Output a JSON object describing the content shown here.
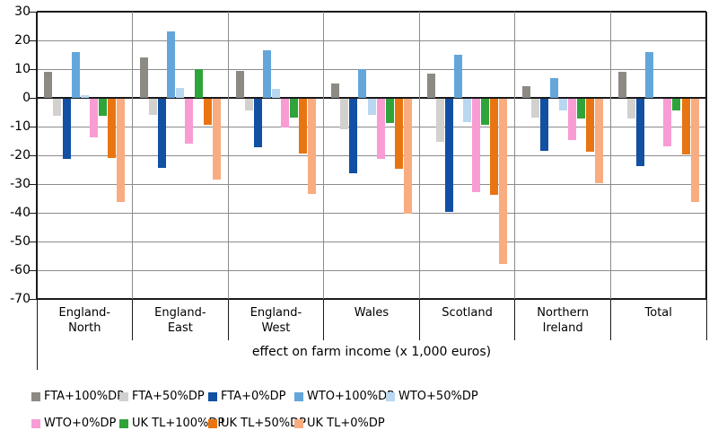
{
  "chart_data": {
    "type": "bar",
    "title": "",
    "xlabel": "effect on farm income (x 1,000 euros)",
    "ylabel": "",
    "ylim": [
      -70,
      30
    ],
    "yticks": [
      30,
      20,
      10,
      0,
      -10,
      -20,
      -30,
      -40,
      -50,
      -60,
      -70
    ],
    "grid": true,
    "legend_position": "bottom",
    "categories": [
      "England-North",
      "England-East",
      "England-West",
      "Wales",
      "Scotland",
      "Northern Ireland",
      "Total"
    ],
    "category_label_lines": [
      [
        "England-",
        "North"
      ],
      [
        "England-",
        "East"
      ],
      [
        "England-",
        "West"
      ],
      [
        "Wales"
      ],
      [
        "Scotland"
      ],
      [
        "Northern",
        "Ireland"
      ],
      [
        "Total"
      ]
    ],
    "series": [
      {
        "name": "FTA+100%DP",
        "color": "#8D8A84",
        "values": [
          9,
          14,
          9.5,
          5,
          8.5,
          4,
          9
        ]
      },
      {
        "name": "FTA+50%DP",
        "color": "#D2D1CF",
        "values": [
          -6,
          -5.5,
          -4,
          -10.5,
          -15,
          -6.5,
          -7
        ]
      },
      {
        "name": "FTA+0%DP",
        "color": "#1150A2",
        "values": [
          -21,
          -24,
          -17,
          -26,
          -39.5,
          -18,
          -23.5
        ]
      },
      {
        "name": "WTO+100%DP",
        "color": "#63A7DA",
        "values": [
          16,
          23,
          16.5,
          10,
          15,
          7,
          16
        ]
      },
      {
        "name": "WTO+50%DP",
        "color": "#B9D7F1",
        "values": [
          1,
          3.5,
          3,
          -5.5,
          -8,
          -4,
          0
        ]
      },
      {
        "name": "WTO+0%DP",
        "color": "#F99CD4",
        "values": [
          -13.5,
          -15.5,
          -10,
          -21,
          -32.5,
          -14.5,
          -16.5
        ]
      },
      {
        "name": "UK TL+100%DP",
        "color": "#2EA43A",
        "values": [
          -6,
          10,
          -6.5,
          -8.5,
          -9,
          -7,
          -4
        ]
      },
      {
        "name": "UK TL+50%DP",
        "color": "#E87512",
        "values": [
          -20.5,
          -9,
          -19,
          -24.5,
          -33.5,
          -18.5,
          -19.5
        ]
      },
      {
        "name": "UK TL+0%DP",
        "color": "#F9AC80",
        "values": [
          -36,
          -28,
          -33,
          -40,
          -57.5,
          -29.5,
          -36
        ]
      }
    ],
    "legend_rows": [
      [
        "FTA+100%DP",
        "FTA+50%DP",
        "FTA+0%DP",
        "WTO+100%DP",
        "WTO+50%DP"
      ],
      [
        "WTO+0%DP",
        "UK TL+100%DP",
        "UK TL+50%DP",
        "UK TL+0%DP"
      ]
    ]
  },
  "colors": {
    "gridline": "#8c8c8c",
    "separator": "#8c8c8c",
    "axis": "#1a1a1a",
    "background": "#ffffff"
  }
}
